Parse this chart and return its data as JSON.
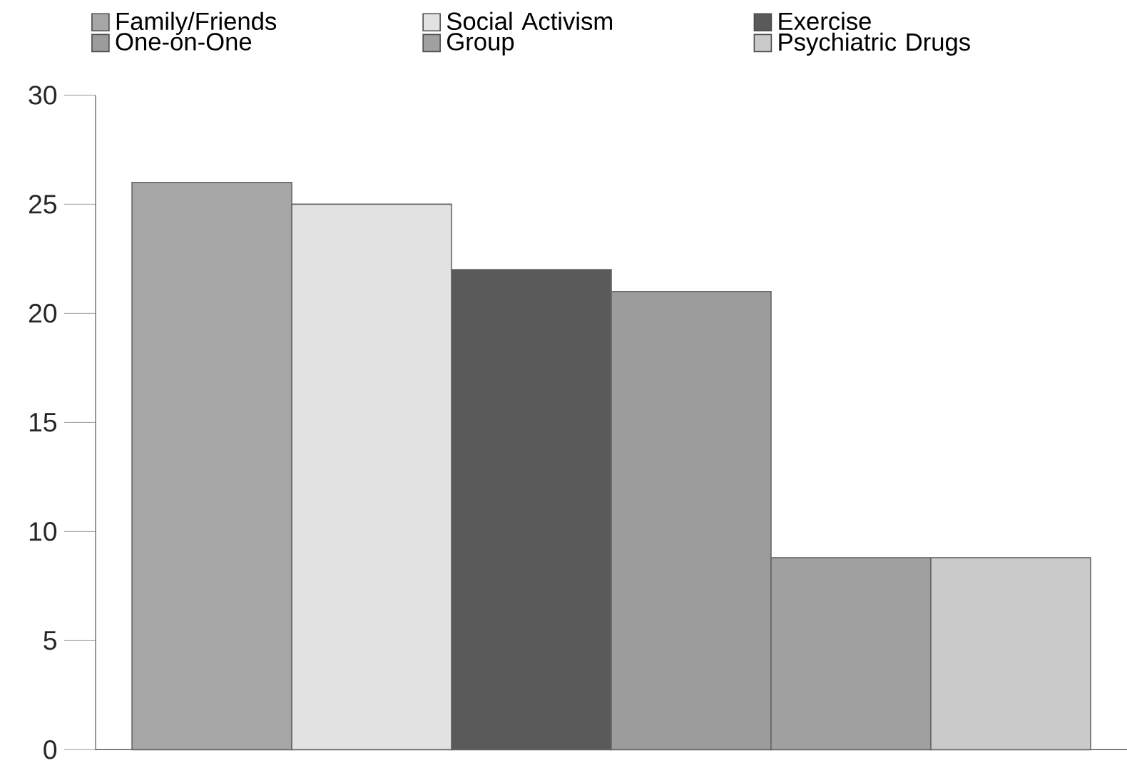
{
  "chart_data": {
    "type": "bar",
    "categories": [
      null
    ],
    "series": [
      {
        "name": "Family/Friends",
        "color": "#a6a6a6",
        "values": [
          26
        ]
      },
      {
        "name": "Social Activism",
        "color": "#e2e2e2",
        "values": [
          25
        ]
      },
      {
        "name": "Exercise",
        "color": "#5a5a5a",
        "values": [
          22
        ]
      },
      {
        "name": "One-on-One",
        "color": "#9c9c9c",
        "values": [
          21
        ]
      },
      {
        "name": "Group",
        "color": "#a0a0a0",
        "values": [
          8.8
        ]
      },
      {
        "name": "Psychiatric Drugs",
        "color": "#cacaca",
        "values": [
          8.8
        ]
      }
    ],
    "ylim": [
      0,
      30
    ],
    "yticks": [
      0,
      5,
      10,
      15,
      20,
      25,
      30
    ],
    "grid": false,
    "legend": "top",
    "tick_labels": "y"
  }
}
